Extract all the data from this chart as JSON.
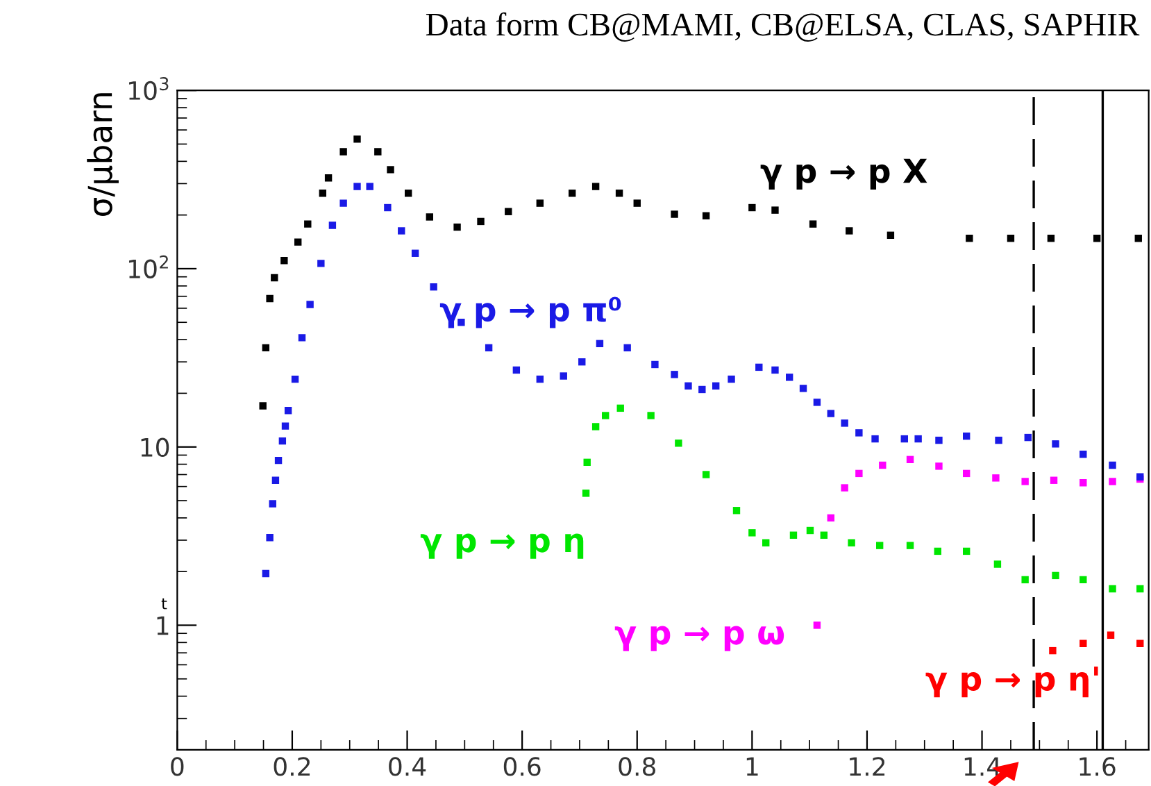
{
  "chart_data": {
    "type": "scatter",
    "title": "Data form CB@MAMI, CB@ELSA, CLAS, SAPHIR",
    "ylabel": "σ/μbarn",
    "annotations": [
      "t"
    ],
    "log": "y",
    "xlim": [
      0,
      1.69
    ],
    "ylim": [
      0.2,
      1000
    ],
    "xticks": [
      0,
      0.2,
      0.4,
      0.6,
      0.8,
      1,
      1.2,
      1.4,
      1.6
    ],
    "yticks": [
      {
        "value": 1,
        "label": "1"
      },
      {
        "value": 10,
        "label": "10"
      },
      {
        "value": 100,
        "label": "10$^{2}$"
      },
      {
        "value": 1000,
        "label": "10$^{3}$"
      }
    ],
    "grid": false,
    "marker": "square",
    "ref_lines": [
      {
        "axis": "x",
        "value": 1.49,
        "color": "#000000",
        "line_style": "dashed"
      },
      {
        "axis": "x",
        "value": 1.61,
        "color": "#000000",
        "line_style": "solid"
      }
    ],
    "series": [
      {
        "name": "γ p → p X",
        "color": "#000000",
        "x": [
          0.149,
          0.154,
          0.161,
          0.169,
          0.186,
          0.21,
          0.227,
          0.253,
          0.263,
          0.289,
          0.313,
          0.349,
          0.371,
          0.402,
          0.439,
          0.487,
          0.528,
          0.576,
          0.631,
          0.687,
          0.728,
          0.769,
          0.8,
          0.865,
          0.92,
          1.0,
          1.04,
          1.106,
          1.169,
          1.241,
          1.378,
          1.45,
          1.52,
          1.6,
          1.672
        ],
        "values": [
          17,
          36,
          68,
          89,
          111,
          141,
          178,
          265,
          323,
          453,
          533,
          453,
          359,
          265,
          195,
          171,
          184,
          209,
          233,
          265,
          289,
          265,
          233,
          202,
          198,
          220,
          213,
          178,
          163,
          154,
          148,
          148,
          148,
          148,
          148
        ]
      },
      {
        "name": "γ p → p π⁰",
        "color": "#1a1ae6",
        "x": [
          0.154,
          0.161,
          0.166,
          0.171,
          0.176,
          0.183,
          0.188,
          0.193,
          0.205,
          0.217,
          0.231,
          0.25,
          0.27,
          0.289,
          0.313,
          0.335,
          0.366,
          0.39,
          0.414,
          0.446,
          0.494,
          0.542,
          0.59,
          0.631,
          0.672,
          0.704,
          0.735,
          0.783,
          0.831,
          0.865,
          0.889,
          0.913,
          0.937,
          0.964,
          1.012,
          1.04,
          1.065,
          1.089,
          1.113,
          1.137,
          1.161,
          1.186,
          1.214,
          1.265,
          1.289,
          1.325,
          1.373,
          1.429,
          1.48,
          1.528,
          1.576,
          1.627,
          1.675
        ],
        "values": [
          1.95,
          3.1,
          4.8,
          6.5,
          8.4,
          10.8,
          13.1,
          16,
          24,
          41,
          63,
          107,
          175,
          233,
          289,
          289,
          220,
          163,
          122,
          79,
          50,
          36,
          27,
          24,
          25,
          30,
          38,
          36,
          29,
          25.5,
          22,
          21,
          22,
          24,
          28,
          27,
          24.6,
          21.3,
          17.8,
          15.4,
          13.6,
          12,
          11.1,
          11.1,
          11.1,
          10.9,
          11.5,
          10.9,
          11.3,
          10.4,
          9.1,
          7.9,
          6.8
        ]
      },
      {
        "name": "γ p → p η",
        "color": "#00e600",
        "x": [
          0.711,
          0.713,
          0.728,
          0.745,
          0.771,
          0.824,
          0.872,
          0.92,
          0.973,
          1.0,
          1.024,
          1.072,
          1.101,
          1.125,
          1.173,
          1.222,
          1.275,
          1.323,
          1.373,
          1.427,
          1.475,
          1.528,
          1.576,
          1.627,
          1.675
        ],
        "values": [
          5.5,
          8.2,
          13,
          15,
          16.5,
          15,
          10.5,
          7,
          4.4,
          3.3,
          2.9,
          3.2,
          3.4,
          3.2,
          2.9,
          2.8,
          2.8,
          2.6,
          2.6,
          2.2,
          1.8,
          1.9,
          1.8,
          1.6,
          1.6
        ]
      },
      {
        "name": "γ p → p ω",
        "color": "#ff00ff",
        "x": [
          1.113,
          1.137,
          1.161,
          1.186,
          1.227,
          1.275,
          1.325,
          1.373,
          1.424,
          1.475,
          1.525,
          1.576,
          1.627,
          1.675
        ],
        "values": [
          1.0,
          4.0,
          5.9,
          7.1,
          7.9,
          8.5,
          7.8,
          7.1,
          6.7,
          6.4,
          6.5,
          6.3,
          6.4,
          6.6
        ]
      },
      {
        "name": "γ p → p η'",
        "color": "#ff0000",
        "x": [
          1.523,
          1.576,
          1.624,
          1.675
        ],
        "values": [
          0.72,
          0.79,
          0.88,
          0.79
        ]
      }
    ]
  }
}
